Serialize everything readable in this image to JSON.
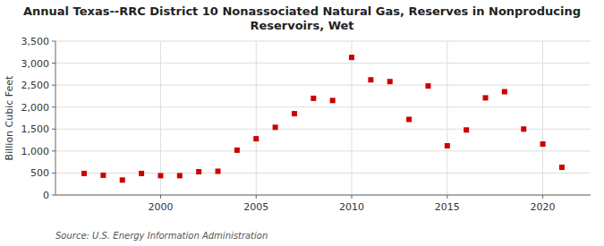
{
  "chart_data": {
    "type": "scatter",
    "title": "Annual Texas--RRC District 10 Nonassociated Natural Gas, Reserves in Nonproducing\nReservoirs, Wet",
    "ylabel": "Billion Cubic Feet",
    "source": "Source: U.S. Energy Information Administration",
    "x": [
      1996,
      1997,
      1998,
      1999,
      2000,
      2001,
      2002,
      2003,
      2004,
      2005,
      2006,
      2007,
      2008,
      2009,
      2010,
      2011,
      2012,
      2013,
      2014,
      2015,
      2016,
      2017,
      2018,
      2019,
      2020,
      2021
    ],
    "values": [
      490,
      450,
      340,
      490,
      440,
      440,
      530,
      540,
      1020,
      1280,
      1540,
      1850,
      2200,
      2150,
      3130,
      2620,
      2580,
      1720,
      2480,
      1120,
      1480,
      2210,
      2350,
      1500,
      1160,
      630
    ],
    "color": "#cc0000",
    "marker": "square",
    "xlim": [
      1994.5,
      2022.5
    ],
    "xticks": [
      2000,
      2005,
      2010,
      2015,
      2020
    ],
    "ylim": [
      0,
      3500
    ],
    "yticks": [
      0,
      500,
      {
        "value": 1000,
        "label": "1,000"
      },
      {
        "value": 1500,
        "label": "1,500"
      },
      {
        "value": 2000,
        "label": "2,000"
      },
      {
        "value": 2500,
        "label": "2,500"
      },
      {
        "value": 3000,
        "label": "3,000"
      },
      {
        "value": 3500,
        "label": "3,500"
      }
    ],
    "grid": true
  }
}
